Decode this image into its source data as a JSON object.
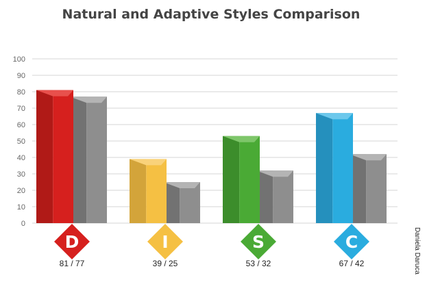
{
  "title": "Natural and Adaptive Styles Comparison",
  "credit": "Daniela Daruca",
  "chart_data": {
    "type": "bar",
    "title": "Natural and Adaptive Styles Comparison",
    "categories": [
      "D",
      "I",
      "S",
      "C"
    ],
    "series": [
      {
        "values": [
          81,
          39,
          53,
          67
        ]
      },
      {
        "values": [
          77,
          25,
          32,
          42
        ]
      }
    ],
    "value_labels": [
      "81 / 77",
      "39 / 25",
      "53 / 32",
      "67 / 42"
    ],
    "ylim": [
      0,
      100
    ],
    "yticks": [
      0,
      10,
      20,
      30,
      40,
      50,
      60,
      70,
      80,
      90,
      100
    ],
    "grid": true,
    "colors": {
      "D": {
        "front": "#d6201e",
        "side": "#b01a17",
        "top": "#e8504c"
      },
      "I": {
        "front": "#f5c043",
        "side": "#d3a43a",
        "top": "#f9d27a"
      },
      "S": {
        "front": "#4aaa35",
        "side": "#3c8d2b",
        "top": "#7ec66a"
      },
      "C": {
        "front": "#2aacdf",
        "side": "#2590bd",
        "top": "#6cc8ec"
      },
      "adaptive": {
        "front": "#8e8e8e",
        "side": "#727272",
        "top": "#b4b4b4"
      }
    }
  }
}
